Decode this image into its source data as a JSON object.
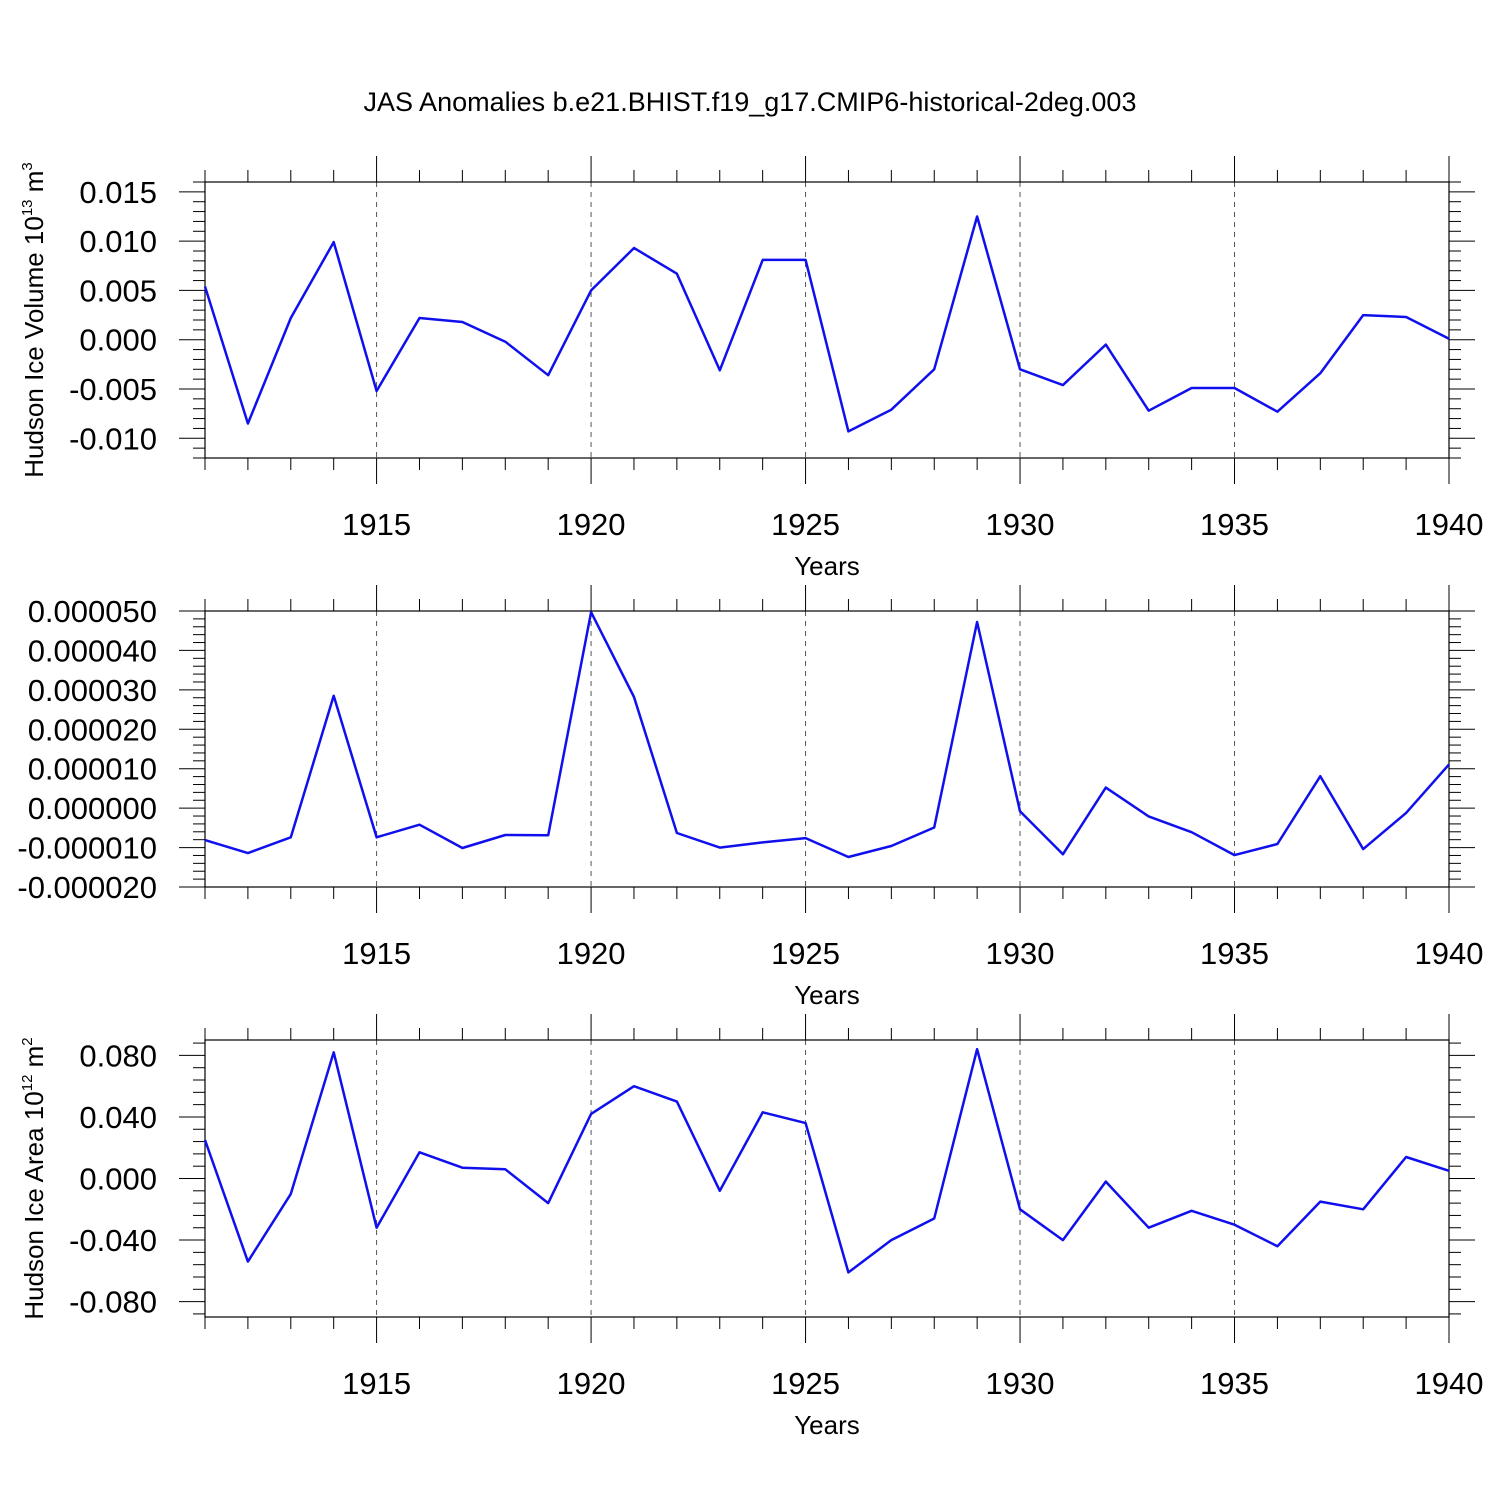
{
  "title": "JAS Anomalies b.e21.BHIST.f19_g17.CMIP6-historical-2deg.003",
  "line_color": "#1010ee",
  "chart_data": [
    {
      "type": "line",
      "title": "",
      "xlabel": "Years",
      "ylabel": "Hudson Ice Volume 10",
      "ylabel_exp": "13",
      "ylabel_unit": " m",
      "ylabel_unit_exp": "3",
      "xlim": [
        1911,
        1940
      ],
      "ylim": [
        -0.012,
        0.016
      ],
      "xticks": [
        1915,
        1920,
        1925,
        1930,
        1935,
        1940
      ],
      "xtick_labels": [
        "1915",
        "1920",
        "1925",
        "1930",
        "1935",
        "1940"
      ],
      "yticks": [
        0.015,
        0.01,
        0.005,
        0.0,
        -0.005,
        -0.01
      ],
      "ytick_labels": [
        "0.015",
        "0.010",
        "0.005",
        "0.000",
        "-0.005",
        "-0.010"
      ],
      "x": [
        1911,
        1912,
        1913,
        1914,
        1915,
        1916,
        1917,
        1918,
        1919,
        1920,
        1921,
        1922,
        1923,
        1924,
        1925,
        1926,
        1927,
        1928,
        1929,
        1930,
        1931,
        1932,
        1933,
        1934,
        1935,
        1936,
        1937,
        1938,
        1939,
        1940
      ],
      "values": [
        0.0054,
        -0.0085,
        0.0022,
        0.0099,
        -0.0052,
        0.0022,
        0.0018,
        -0.0002,
        -0.0036,
        0.005,
        0.0093,
        0.0067,
        -0.0031,
        0.0081,
        0.0081,
        -0.0093,
        -0.0071,
        -0.003,
        0.0125,
        -0.003,
        -0.0046,
        -0.0005,
        -0.0072,
        -0.0049,
        -0.0049,
        -0.0073,
        -0.0034,
        0.0025,
        0.0023,
        0.0001
      ]
    },
    {
      "type": "line",
      "title": "",
      "xlabel": "Years",
      "ylabel": "",
      "xlim": [
        1911,
        1940
      ],
      "ylim": [
        -2e-05,
        5e-05
      ],
      "xticks": [
        1915,
        1920,
        1925,
        1930,
        1935,
        1940
      ],
      "xtick_labels": [
        "1915",
        "1920",
        "1925",
        "1930",
        "1935",
        "1940"
      ],
      "yticks": [
        5e-05,
        4e-05,
        3e-05,
        2e-05,
        1e-05,
        0.0,
        -1e-05,
        -2e-05
      ],
      "ytick_labels": [
        "0.000050",
        "0.000040",
        "0.000030",
        "0.000020",
        "0.000010",
        "0.000000",
        "-0.000010",
        "-0.000020"
      ],
      "x": [
        1911,
        1912,
        1913,
        1914,
        1915,
        1916,
        1917,
        1918,
        1919,
        1920,
        1921,
        1922,
        1923,
        1924,
        1925,
        1926,
        1927,
        1928,
        1929,
        1930,
        1931,
        1932,
        1933,
        1934,
        1935,
        1936,
        1937,
        1938,
        1939,
        1940
      ],
      "values": [
        -8.1e-06,
        -1.14e-05,
        -7.4e-06,
        2.85e-05,
        -7.4e-06,
        -4.2e-06,
        -1.01e-05,
        -6.8e-06,
        -6.9e-06,
        4.97e-05,
        2.82e-05,
        -6.3e-06,
        -1e-05,
        -8.7e-06,
        -7.6e-06,
        -1.24e-05,
        -9.6e-06,
        -4.9e-06,
        4.72e-05,
        -8e-07,
        -1.17e-05,
        5.2e-06,
        -2.1e-06,
        -6.1e-06,
        -1.19e-05,
        -9.1e-06,
        8.1e-06,
        -1.04e-05,
        -1.2e-06,
        1.11e-05
      ]
    },
    {
      "type": "line",
      "title": "",
      "xlabel": "Years",
      "ylabel": "Hudson Ice Area 10",
      "ylabel_exp": "12",
      "ylabel_unit": " m",
      "ylabel_unit_exp": "2",
      "xlim": [
        1911,
        1940
      ],
      "ylim": [
        -0.09,
        0.09
      ],
      "xticks": [
        1915,
        1920,
        1925,
        1930,
        1935,
        1940
      ],
      "xtick_labels": [
        "1915",
        "1920",
        "1925",
        "1930",
        "1935",
        "1940"
      ],
      "yticks": [
        0.08,
        0.04,
        0.0,
        -0.04,
        -0.08
      ],
      "ytick_labels": [
        "0.080",
        "0.040",
        "0.000",
        "-0.040",
        "-0.080"
      ],
      "x": [
        1911,
        1912,
        1913,
        1914,
        1915,
        1916,
        1917,
        1918,
        1919,
        1920,
        1921,
        1922,
        1923,
        1924,
        1925,
        1926,
        1927,
        1928,
        1929,
        1930,
        1931,
        1932,
        1933,
        1934,
        1935,
        1936,
        1937,
        1938,
        1939,
        1940
      ],
      "values": [
        0.025,
        -0.054,
        -0.01,
        0.082,
        -0.032,
        0.017,
        0.007,
        0.006,
        -0.016,
        0.042,
        0.06,
        0.05,
        -0.008,
        0.043,
        0.036,
        -0.061,
        -0.04,
        -0.026,
        0.084,
        -0.02,
        -0.04,
        -0.002,
        -0.032,
        -0.021,
        -0.03,
        -0.044,
        -0.015,
        -0.02,
        0.014,
        0.005
      ]
    }
  ]
}
